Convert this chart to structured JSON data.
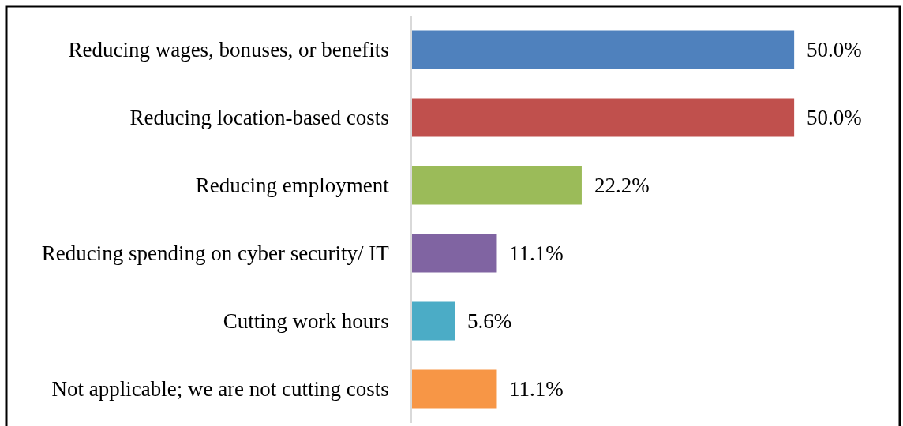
{
  "chart_data": {
    "type": "bar",
    "orientation": "horizontal",
    "categories": [
      "Reducing wages, bonuses, or benefits",
      "Reducing location-based costs",
      "Reducing employment",
      "Reducing spending on cyber security/ IT",
      "Cutting work hours",
      "Not applicable; we are not cutting costs"
    ],
    "values": [
      50.0,
      50.0,
      22.2,
      11.1,
      5.6,
      11.1
    ],
    "value_labels": [
      "50.0%",
      "50.0%",
      "22.2%",
      "11.1%",
      "5.6%",
      "11.1%"
    ],
    "colors": [
      "#4f81bd",
      "#c0504d",
      "#9bbb59",
      "#8064a2",
      "#4bacc6",
      "#f79646"
    ],
    "tick_labels": "y"
  }
}
